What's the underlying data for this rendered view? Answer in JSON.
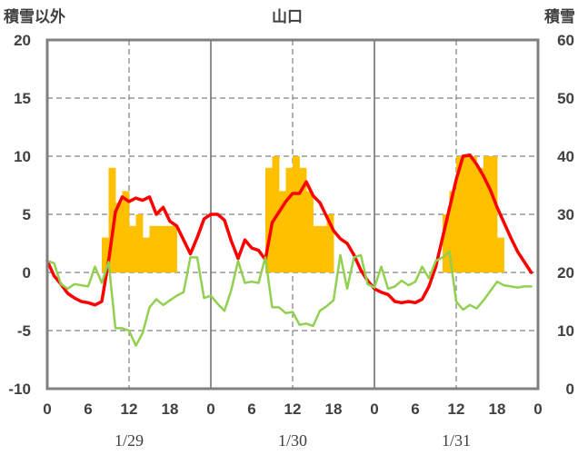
{
  "chart_data": {
    "type": "bar+line",
    "title": "山口",
    "y_left_label": "積雪以外",
    "y_right_label": "積雪",
    "y_left_range": [
      -10,
      20
    ],
    "y_right_range": [
      0,
      60
    ],
    "y_left_ticks": [
      "20",
      "15",
      "10",
      "5",
      "0",
      "-5",
      "-10"
    ],
    "y_right_ticks": [
      "60",
      "50",
      "40",
      "30",
      "20",
      "10",
      "0"
    ],
    "x_range_hours": [
      0,
      72
    ],
    "x_ticks": [
      "0",
      "6",
      "12",
      "18",
      "0",
      "6",
      "12",
      "18",
      "0",
      "6",
      "12",
      "18",
      "0"
    ],
    "date_labels": [
      "1/29",
      "1/30",
      "1/31"
    ],
    "grid": true,
    "colors": {
      "bars": "#FFC000",
      "red_line": "#FF0000",
      "green_line": "#92D050",
      "purple_line": "#7030A0",
      "frame": "#808080",
      "grid": "#808080"
    },
    "series": [
      {
        "type": "bar",
        "axis": "left",
        "color": "#FFC000",
        "x": [
          8,
          9,
          10,
          11,
          12,
          13,
          14,
          15,
          16,
          17,
          18,
          32,
          33,
          34,
          35,
          36,
          37,
          38,
          39,
          40,
          41,
          42,
          58,
          59,
          60,
          61,
          62,
          63,
          64,
          65,
          66
        ],
        "values": [
          3,
          9,
          6,
          7,
          4,
          5,
          3,
          4,
          4,
          4,
          4,
          9,
          10,
          7,
          9,
          10,
          9,
          7,
          4,
          4,
          5,
          0,
          5,
          7,
          10,
          10,
          10,
          9,
          10,
          10,
          3
        ]
      },
      {
        "type": "line",
        "axis": "left",
        "color": "#FF0000",
        "width": 3.5,
        "x": [
          0,
          1,
          2,
          3,
          4,
          5,
          6,
          7,
          8,
          9,
          10,
          11,
          12,
          13,
          14,
          15,
          16,
          17,
          18,
          19,
          20,
          21,
          22,
          23,
          24,
          25,
          26,
          27,
          28,
          29,
          30,
          31,
          32,
          33,
          34,
          35,
          36,
          37,
          38,
          39,
          40,
          41,
          42,
          43,
          44,
          45,
          46,
          47,
          48,
          49,
          50,
          51,
          52,
          53,
          54,
          55,
          56,
          57,
          58,
          59,
          60,
          61,
          62,
          63,
          64,
          65,
          66,
          67,
          68,
          69,
          70,
          71
        ],
        "values": [
          1,
          -0.3,
          -1,
          -1.8,
          -2.2,
          -2.5,
          -2.6,
          -2.8,
          -2.5,
          1,
          5.2,
          6.5,
          6.1,
          6.4,
          6.2,
          6.5,
          5,
          5.6,
          4.4,
          4,
          2.8,
          1.6,
          3,
          4.6,
          5,
          5,
          4.5,
          2.7,
          1.2,
          2.8,
          2.1,
          1.9,
          1.1,
          4.3,
          5.2,
          6.1,
          6.8,
          6.8,
          7.8,
          6.6,
          6,
          4.8,
          3.6,
          2.9,
          2.5,
          1.5,
          0.2,
          -0.7,
          -1.4,
          -1.7,
          -1.9,
          -2.5,
          -2.6,
          -2.5,
          -2.6,
          -2.3,
          -1.2,
          0.5,
          3,
          5.5,
          8,
          10,
          10.1,
          9.3,
          8.3,
          7.1,
          5.6,
          4.3,
          3,
          1.8,
          0.9,
          0
        ]
      },
      {
        "type": "line",
        "axis": "left",
        "color": "#92D050",
        "width": 2.5,
        "x": [
          0,
          1,
          2,
          3,
          4,
          5,
          6,
          7,
          8,
          9,
          10,
          11,
          12,
          13,
          14,
          15,
          16,
          17,
          18,
          19,
          20,
          21,
          22,
          23,
          24,
          25,
          26,
          27,
          28,
          29,
          30,
          31,
          32,
          33,
          34,
          35,
          36,
          37,
          38,
          39,
          40,
          41,
          42,
          43,
          44,
          45,
          46,
          47,
          48,
          49,
          50,
          51,
          52,
          53,
          54,
          55,
          56,
          57,
          58,
          59,
          60,
          61,
          62,
          63,
          64,
          65,
          66,
          67,
          68,
          69,
          70,
          71
        ],
        "values": [
          1,
          0.8,
          -1,
          -1.4,
          -1,
          -1.1,
          -1.2,
          0.5,
          -0.9,
          0.9,
          -4.8,
          -4.8,
          -5,
          -6.3,
          -5.2,
          -3,
          -2.3,
          -2.8,
          -2.4,
          -2,
          -1.7,
          1.3,
          1.3,
          -2.2,
          -2,
          -2.7,
          -3.3,
          -1.5,
          1,
          -0.9,
          -0.8,
          -0.9,
          1.3,
          -3,
          -3,
          -3.5,
          -3.4,
          -4.5,
          -4.4,
          -4.6,
          -3.3,
          -2.9,
          -2.4,
          1.5,
          -1.4,
          1.3,
          1.5,
          -1,
          -1.3,
          0.5,
          -1.4,
          -1.2,
          -0.7,
          -1.1,
          -0.8,
          0.5,
          -0.5,
          1,
          1.3,
          1.8,
          -2.5,
          -3.2,
          -2.8,
          -3.1,
          -2.4,
          -1.6,
          -0.8,
          -1.1,
          -1.2,
          -1.3,
          -1.2,
          -1.2
        ]
      },
      {
        "type": "line",
        "axis": "right",
        "color": "#7030A0",
        "width": 2.5,
        "x": [
          0,
          72
        ],
        "values": [
          0,
          0
        ]
      }
    ]
  }
}
